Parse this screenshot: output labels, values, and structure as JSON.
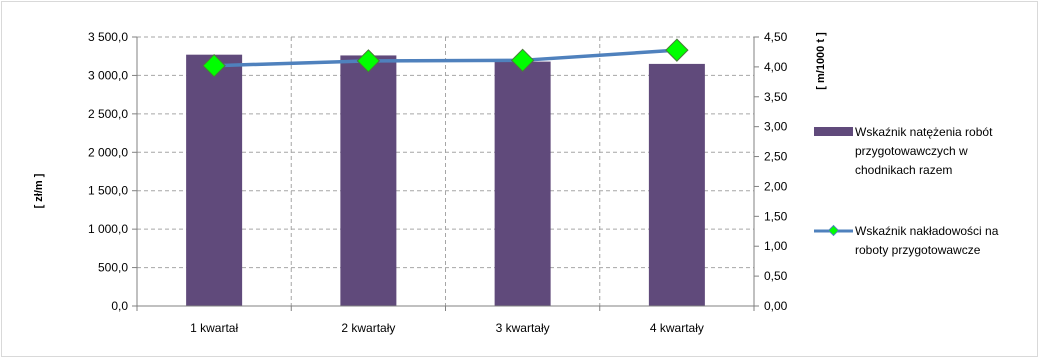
{
  "chart_data": {
    "type": "bar",
    "title": "",
    "categories": [
      "1 kwartał",
      "2 kwartały",
      "3 kwartały",
      "4 kwartały"
    ],
    "y_left": {
      "label": "[ zł/m ]",
      "ylim": [
        0,
        3500
      ],
      "ticks": [
        "0,0",
        "500,0",
        "1 000,0",
        "1 500,0",
        "2 000,0",
        "2 500,0",
        "3 000,0",
        "3 500,0"
      ]
    },
    "y_right": {
      "label": "[ m/1000 t ]",
      "ylim": [
        0,
        4.5
      ],
      "ticks": [
        "0,00",
        "0,50",
        "1,00",
        "1,50",
        "2,00",
        "2,50",
        "3,00",
        "3,50",
        "4,00",
        "4,50"
      ]
    },
    "series": [
      {
        "name": "Wskaźnik natężenia robót przygotowawczych w chodnikach razem",
        "type": "bar",
        "axis": "left",
        "color": "#604a7b",
        "values": [
          3270,
          3260,
          3180,
          3150
        ]
      },
      {
        "name": "Wskaźnik nakładowości na roboty przygotowawcze",
        "type": "line",
        "axis": "right",
        "color": "#4f81bd",
        "marker_color": "#00ff00",
        "values": [
          4.02,
          4.1,
          4.11,
          4.28
        ]
      }
    ],
    "grid": true,
    "legend_position": "right"
  }
}
